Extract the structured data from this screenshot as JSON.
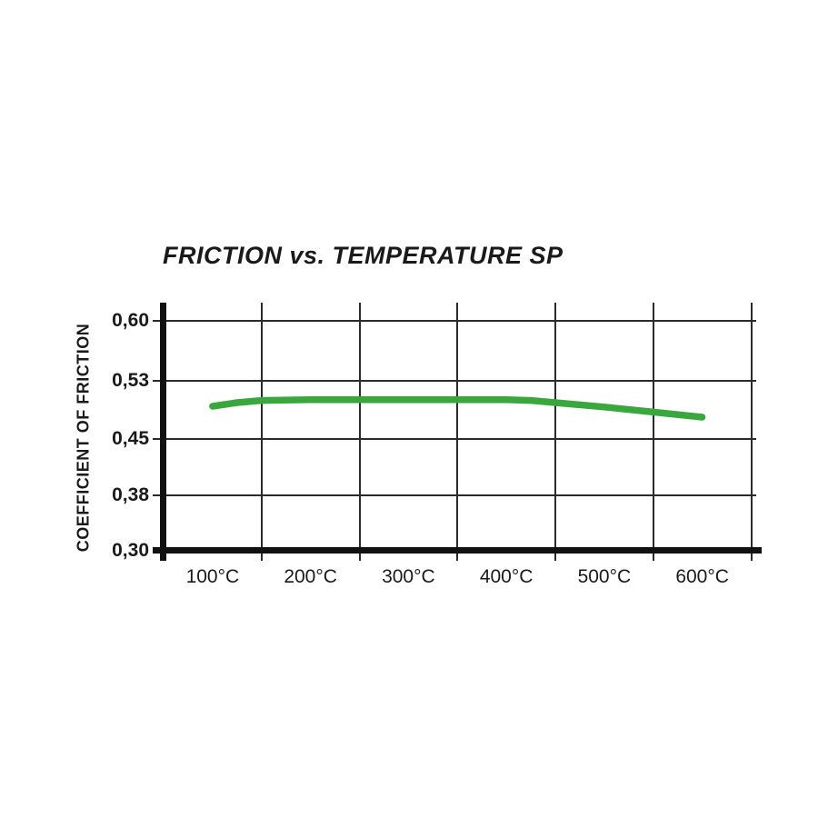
{
  "title": "FRICTION vs. TEMPERATURE SP",
  "y_axis": {
    "label": "COEFFICIENT OF FRICTION",
    "tick_labels": [
      "0,60",
      "0,53",
      "0,45",
      "0,38",
      "0,30"
    ],
    "tick_values": [
      0.6,
      0.53,
      0.45,
      0.38,
      0.3
    ]
  },
  "x_axis": {
    "tick_labels": [
      "100°C",
      "200°C",
      "300°C",
      "400°C",
      "500°C",
      "600°C"
    ],
    "tick_values": [
      100,
      200,
      300,
      400,
      500,
      600
    ]
  },
  "line_color": "#3aa63e",
  "axis_color": "#111111",
  "grid_color": "#2b2b2b",
  "chart_data": {
    "type": "line",
    "title": "FRICTION vs. TEMPERATURE SP",
    "xlabel": "",
    "ylabel": "COEFFICIENT OF FRICTION",
    "x": [
      100,
      125,
      150,
      200,
      250,
      300,
      350,
      400,
      425,
      450,
      500,
      550,
      600
    ],
    "series": [
      {
        "name": "SP",
        "values": [
          0.495,
          0.5,
          0.503,
          0.504,
          0.504,
          0.504,
          0.504,
          0.504,
          0.503,
          0.5,
          0.494,
          0.487,
          0.48
        ]
      }
    ],
    "x_tick_labels": [
      "100°C",
      "200°C",
      "300°C",
      "400°C",
      "500°C",
      "600°C"
    ],
    "y_tick_labels": [
      "0,60",
      "0,53",
      "0,45",
      "0,38",
      "0,30"
    ],
    "y_tick_values": [
      0.6,
      0.53,
      0.45,
      0.38,
      0.3
    ],
    "xlim": [
      50,
      650
    ],
    "ylim": [
      0.3,
      0.62
    ],
    "grid": true,
    "legend": "none"
  }
}
